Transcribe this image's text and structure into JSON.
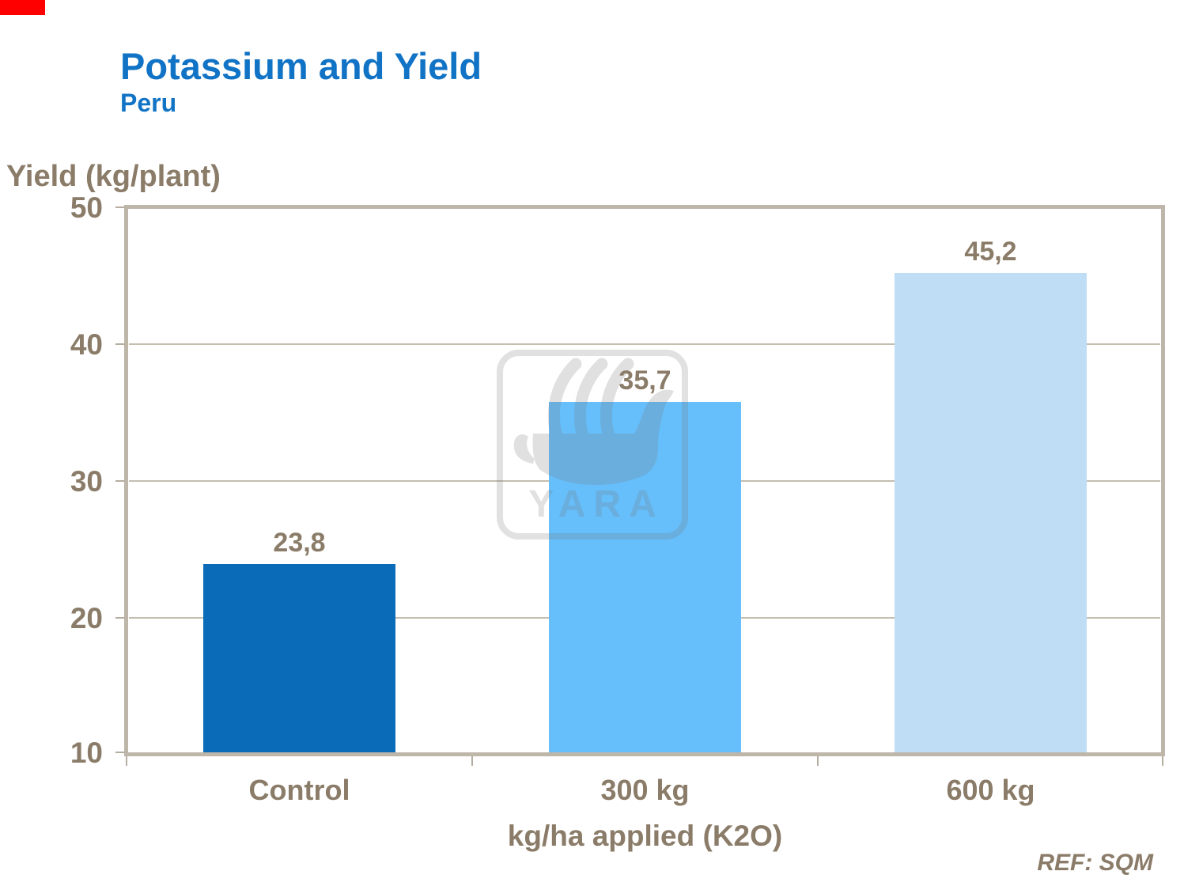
{
  "header": {
    "title": "Potassium and Yield",
    "subtitle": "Peru"
  },
  "chart_data": {
    "type": "bar",
    "title": "Potassium and Yield",
    "subtitle": "Peru",
    "categories": [
      "Control",
      "300 kg",
      "600 kg"
    ],
    "values": [
      23.8,
      35.7,
      45.2
    ],
    "value_labels": [
      "23,8",
      "35,7",
      "45,2"
    ],
    "xlabel": "kg/ha applied (K2O)",
    "ylabel": "Yield (kg/plant)",
    "ylim": [
      10,
      50
    ],
    "yticks": [
      50,
      40,
      30,
      20,
      10
    ],
    "ytick_labels": [
      "50",
      "40",
      "30",
      "20",
      "10"
    ],
    "grid": true,
    "legend": false,
    "bar_colors": [
      "#0a6cb8",
      "#66befa",
      "#bfdef5"
    ]
  },
  "watermark": {
    "text": "YARA",
    "logo": "yara-viking-ship-logo"
  },
  "footer": {
    "reference": "REF: SQM"
  },
  "colors": {
    "title_blue": "#1173c5",
    "axis_text": "#8a7c68",
    "frame": "#beb6a9",
    "gridline": "#c4beaf",
    "corner_accent_red": "#fe0000",
    "watermark_gray": "#787878"
  }
}
